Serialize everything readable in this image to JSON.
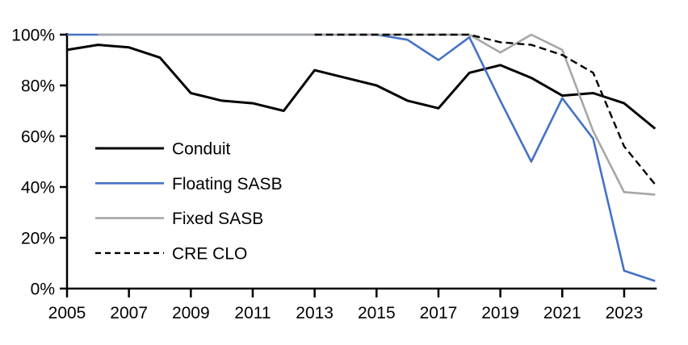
{
  "chart_data": {
    "type": "line",
    "title": "",
    "xlabel": "",
    "ylabel": "",
    "x": [
      2005,
      2006,
      2007,
      2008,
      2009,
      2010,
      2011,
      2012,
      2013,
      2014,
      2015,
      2016,
      2017,
      2018,
      2019,
      2020,
      2021,
      2022,
      2023,
      2024
    ],
    "x_ticks": [
      2005,
      2007,
      2009,
      2011,
      2013,
      2015,
      2017,
      2019,
      2021,
      2023
    ],
    "x_tick_labels": [
      "2005",
      "2007",
      "2009",
      "2011",
      "2013",
      "2015",
      "2017",
      "2019",
      "2021",
      "2023"
    ],
    "y_ticks": [
      0,
      20,
      40,
      60,
      80,
      100
    ],
    "y_tick_labels": [
      "0%",
      "20%",
      "40%",
      "60%",
      "80%",
      "100%"
    ],
    "ylim": [
      0,
      100
    ],
    "xlim": [
      2005,
      2024
    ],
    "grid": false,
    "legend_position": "inside-left",
    "series": [
      {
        "name": "Conduit",
        "color": "#000000",
        "dash": null,
        "width": 3,
        "values": [
          94,
          96,
          95,
          91,
          77,
          74,
          73,
          70,
          86,
          83,
          80,
          74,
          71,
          85,
          88,
          83,
          76,
          77,
          73,
          63
        ]
      },
      {
        "name": "Floating SASB",
        "color": "#4472C4",
        "dash": null,
        "width": 2.6,
        "values": [
          100,
          100,
          100,
          100,
          100,
          100,
          100,
          100,
          100,
          100,
          100,
          98,
          90,
          99,
          74,
          50,
          75,
          59,
          7,
          3
        ]
      },
      {
        "name": "Fixed SASB",
        "color": "#A6A6A6",
        "dash": null,
        "width": 2.6,
        "values": [
          null,
          100,
          100,
          100,
          100,
          100,
          100,
          100,
          100,
          100,
          100,
          100,
          100,
          100,
          93,
          100,
          94,
          62,
          38,
          37
        ]
      },
      {
        "name": "CRE CLO",
        "color": "#000000",
        "dash": "9 5",
        "width": 2.4,
        "values": [
          null,
          null,
          null,
          null,
          null,
          null,
          null,
          null,
          100,
          100,
          100,
          100,
          100,
          100,
          97,
          96,
          92,
          85,
          56,
          41
        ]
      }
    ]
  }
}
